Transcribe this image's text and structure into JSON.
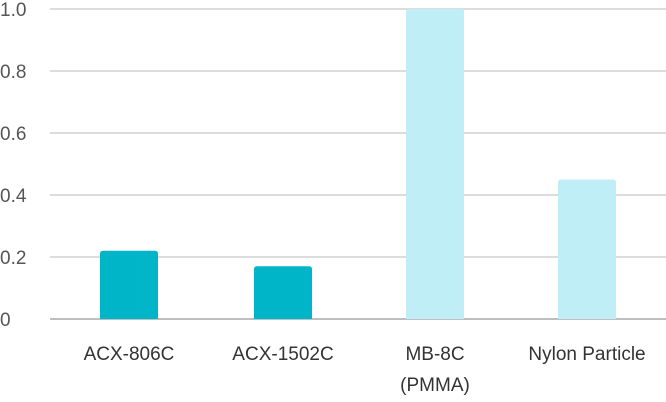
{
  "chart_data": {
    "type": "bar",
    "title": "",
    "xlabel": "",
    "ylabel": "",
    "ylim": [
      0,
      1.0
    ],
    "y_ticks": [
      "0",
      "0.2",
      "0.4",
      "0.6",
      "0.8",
      "1.0"
    ],
    "grid": true,
    "legend": "none",
    "categories": [
      [
        "ACX-806C"
      ],
      [
        "ACX-1502C"
      ],
      [
        "MB-8C",
        "(PMMA)"
      ],
      [
        "Nylon Particle"
      ]
    ],
    "values": [
      0.22,
      0.17,
      1.0,
      0.45
    ],
    "colors": [
      "#00b5c8",
      "#00b5c8",
      "#c0eef6",
      "#c0eef6"
    ],
    "axis_color": "#bfbfbf",
    "grid_color": "#d0d0d0"
  }
}
